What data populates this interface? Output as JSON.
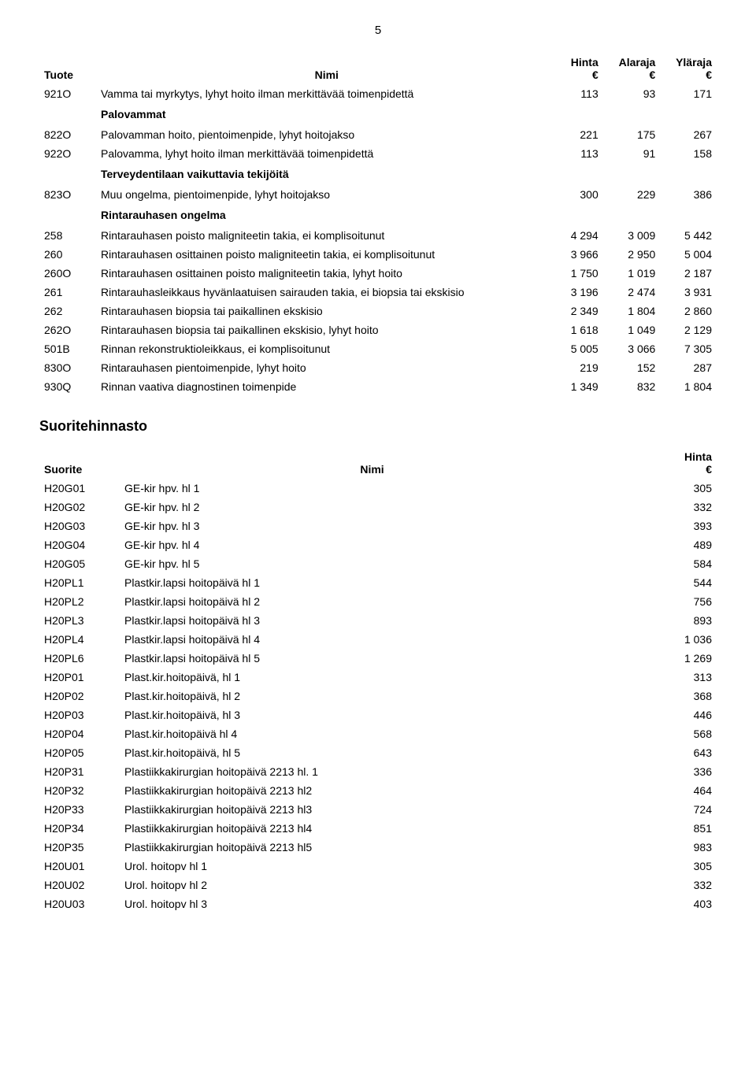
{
  "page_number": "5",
  "table1": {
    "headers": {
      "tuote": "Tuote",
      "nimi": "Nimi",
      "hinta": "Hinta",
      "alaraja": "Alaraja",
      "ylaraja": "Yläraja",
      "euro": "€"
    },
    "rows": [
      {
        "code": "921O",
        "name": "Vamma tai myrkytys, lyhyt hoito ilman merkittävää toimenpidettä",
        "hinta": "113",
        "alaraja": "93",
        "ylaraja": "171"
      },
      {
        "section": "Palovammat"
      },
      {
        "code": "822O",
        "name": "Palovamman hoito, pientoimenpide, lyhyt hoitojakso",
        "hinta": "221",
        "alaraja": "175",
        "ylaraja": "267"
      },
      {
        "code": "922O",
        "name": "Palovamma, lyhyt hoito ilman merkittävää toimenpidettä",
        "hinta": "113",
        "alaraja": "91",
        "ylaraja": "158"
      },
      {
        "section": "Terveydentilaan vaikuttavia tekijöitä"
      },
      {
        "code": "823O",
        "name": "Muu ongelma, pientoimenpide, lyhyt hoitojakso",
        "hinta": "300",
        "alaraja": "229",
        "ylaraja": "386"
      },
      {
        "section": "Rintarauhasen ongelma"
      },
      {
        "code": "258",
        "name": "Rintarauhasen poisto maligniteetin takia, ei komplisoitunut",
        "hinta": "4 294",
        "alaraja": "3 009",
        "ylaraja": "5 442"
      },
      {
        "code": "260",
        "name": "Rintarauhasen osittainen poisto maligniteetin takia, ei komplisoitunut",
        "hinta": "3 966",
        "alaraja": "2 950",
        "ylaraja": "5 004"
      },
      {
        "code": "260O",
        "name": "Rintarauhasen osittainen poisto maligniteetin takia, lyhyt hoito",
        "hinta": "1 750",
        "alaraja": "1 019",
        "ylaraja": "2 187"
      },
      {
        "code": "261",
        "name": "Rintarauhasleikkaus hyvänlaatuisen sairauden takia, ei biopsia tai ekskisio",
        "hinta": "3 196",
        "alaraja": "2 474",
        "ylaraja": "3 931"
      },
      {
        "code": "262",
        "name": "Rintarauhasen biopsia tai paikallinen ekskisio",
        "hinta": "2 349",
        "alaraja": "1 804",
        "ylaraja": "2 860"
      },
      {
        "code": "262O",
        "name": "Rintarauhasen biopsia tai paikallinen ekskisio, lyhyt hoito",
        "hinta": "1 618",
        "alaraja": "1 049",
        "ylaraja": "2 129"
      },
      {
        "code": "501B",
        "name": "Rinnan rekonstruktioleikkaus, ei komplisoitunut",
        "hinta": "5 005",
        "alaraja": "3 066",
        "ylaraja": "7 305"
      },
      {
        "code": "830O",
        "name": "Rintarauhasen pientoimenpide, lyhyt hoito",
        "hinta": "219",
        "alaraja": "152",
        "ylaraja": "287"
      },
      {
        "code": "930Q",
        "name": "Rinnan vaativa diagnostinen toimenpide",
        "hinta": "1 349",
        "alaraja": "832",
        "ylaraja": "1 804"
      }
    ]
  },
  "section2_title": "Suoritehinnasto",
  "table2": {
    "headers": {
      "suorite": "Suorite",
      "nimi": "Nimi",
      "hinta": "Hinta",
      "euro": "€"
    },
    "rows": [
      {
        "code": "H20G01",
        "name": "GE-kir hpv. hl 1",
        "hinta": "305"
      },
      {
        "code": "H20G02",
        "name": "GE-kir hpv. hl 2",
        "hinta": "332"
      },
      {
        "code": "H20G03",
        "name": "GE-kir hpv. hl 3",
        "hinta": "393"
      },
      {
        "code": "H20G04",
        "name": "GE-kir hpv. hl 4",
        "hinta": "489"
      },
      {
        "code": "H20G05",
        "name": "GE-kir hpv. hl 5",
        "hinta": "584"
      },
      {
        "code": "H20PL1",
        "name": "Plastkir.lapsi hoitopäivä hl 1",
        "hinta": "544"
      },
      {
        "code": "H20PL2",
        "name": "Plastkir.lapsi hoitopäivä hl 2",
        "hinta": "756"
      },
      {
        "code": "H20PL3",
        "name": "Plastkir.lapsi hoitopäivä hl 3",
        "hinta": "893"
      },
      {
        "code": "H20PL4",
        "name": "Plastkir.lapsi hoitopäivä hl 4",
        "hinta": "1 036"
      },
      {
        "code": "H20PL6",
        "name": "Plastkir.lapsi hoitopäivä hl 5",
        "hinta": "1 269"
      },
      {
        "code": "H20P01",
        "name": "Plast.kir.hoitopäivä, hl 1",
        "hinta": "313"
      },
      {
        "code": "H20P02",
        "name": "Plast.kir.hoitopäivä, hl 2",
        "hinta": "368"
      },
      {
        "code": "H20P03",
        "name": "Plast.kir.hoitopäivä, hl 3",
        "hinta": "446"
      },
      {
        "code": "H20P04",
        "name": "Plast.kir.hoitopäivä hl 4",
        "hinta": "568"
      },
      {
        "code": "H20P05",
        "name": "Plast.kir.hoitopäivä, hl 5",
        "hinta": "643"
      },
      {
        "code": "H20P31",
        "name": "Plastiikkakirurgian hoitopäivä 2213 hl. 1",
        "hinta": "336"
      },
      {
        "code": "H20P32",
        "name": "Plastiikkakirurgian hoitopäivä 2213 hl2",
        "hinta": "464"
      },
      {
        "code": "H20P33",
        "name": "Plastiikkakirurgian hoitopäivä 2213 hl3",
        "hinta": "724"
      },
      {
        "code": "H20P34",
        "name": "Plastiikkakirurgian hoitopäivä 2213 hl4",
        "hinta": "851"
      },
      {
        "code": "H20P35",
        "name": "Plastiikkakirurgian hoitopäivä 2213 hl5",
        "hinta": "983"
      },
      {
        "code": "H20U01",
        "name": "Urol. hoitopv hl 1",
        "hinta": "305"
      },
      {
        "code": "H20U02",
        "name": "Urol. hoitopv hl 2",
        "hinta": "332"
      },
      {
        "code": "H20U03",
        "name": "Urol. hoitopv hl 3",
        "hinta": "403"
      }
    ]
  }
}
